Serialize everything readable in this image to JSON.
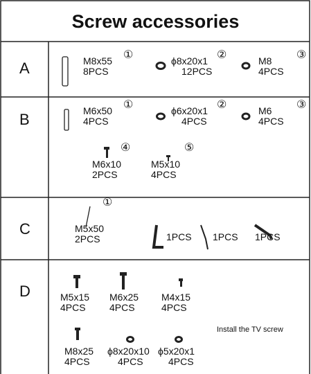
{
  "title": "Screw accessories",
  "sections": [
    {
      "label": "A",
      "items": [
        {
          "name": "M8x55",
          "qty": "8PCS",
          "index": "①"
        },
        {
          "name": "ϕ8x20x1",
          "qty": "12PCS",
          "index": "②"
        },
        {
          "name": "M8",
          "qty": "4PCS",
          "index": "③"
        }
      ]
    },
    {
      "label": "B",
      "items": [
        {
          "name": "M6x50",
          "qty": "4PCS",
          "index": "①"
        },
        {
          "name": "ϕ6x20x1",
          "qty": "4PCS",
          "index": "②"
        },
        {
          "name": "M6",
          "qty": "4PCS",
          "index": "③"
        },
        {
          "name": "M6x10",
          "qty": "2PCS",
          "index": "④"
        },
        {
          "name": "M5x10",
          "qty": "4PCS",
          "index": "⑤"
        }
      ]
    },
    {
      "label": "C",
      "items": [
        {
          "name": "M5x50",
          "qty": "2PCS",
          "index": "①"
        },
        {
          "qty": "1PCS"
        },
        {
          "qty": "1PCS"
        },
        {
          "qty": "1PCS"
        }
      ]
    },
    {
      "label": "D",
      "note": "Install the TV screw",
      "items": [
        {
          "name": "M5x15",
          "qty": "4PCS"
        },
        {
          "name": "M6x25",
          "qty": "4PCS"
        },
        {
          "name": "M4x15",
          "qty": "4PCS"
        },
        {
          "name": "M8x25",
          "qty": "4PCS"
        },
        {
          "name": "ϕ8x20x10",
          "qty": "4PCS"
        },
        {
          "name": "ϕ5x20x1",
          "qty": "4PCS"
        }
      ]
    }
  ]
}
